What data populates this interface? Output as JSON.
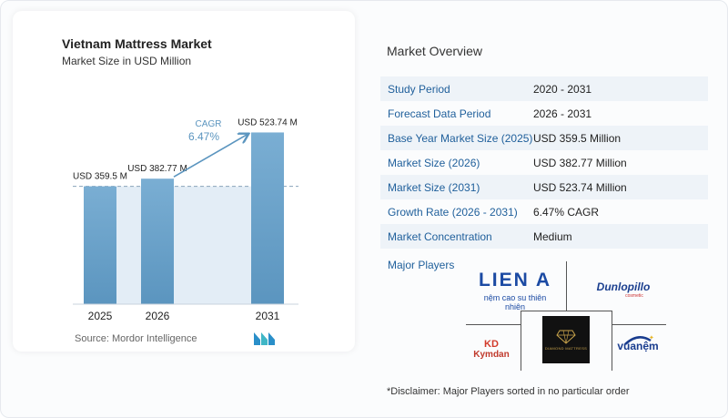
{
  "chart_data": {
    "type": "bar",
    "title": "Vietnam Mattress Market",
    "subtitle": "Market Size in USD Million",
    "categories": [
      "2025",
      "2026",
      "2031"
    ],
    "values": [
      359.5,
      382.77,
      523.74
    ],
    "data_labels": [
      "USD 359.5 M",
      "USD 382.77 M",
      "USD 523.74 M"
    ],
    "cagr_label": "CAGR",
    "cagr_value": "6.47%",
    "bar_color": "#5b95bf",
    "bar_color_top": "#7aaed3",
    "shade_color": "#e3edf6",
    "source": "Source:  Mordor Intelligence"
  },
  "overview": {
    "title": "Market Overview",
    "rows": [
      {
        "label": "Study Period",
        "value": "2020 - 2031"
      },
      {
        "label": "Forecast Data Period",
        "value": "2026 - 2031"
      },
      {
        "label": "Base Year Market Size (2025)",
        "value": "USD 359.5 Million"
      },
      {
        "label": "Market Size (2026)",
        "value": "USD 382.77 Million"
      },
      {
        "label": "Market Size (2031)",
        "value": "USD 523.74 Million"
      },
      {
        "label": "Growth Rate (2026 - 2031)",
        "value": "6.47% CAGR"
      },
      {
        "label": "Market Concentration",
        "value": "Medium"
      }
    ]
  },
  "players": {
    "title": "Major Players",
    "lien_a": {
      "name": "LIEN A",
      "tagline": "nệm cao su thiên nhiên"
    },
    "dunlopillo": {
      "name": "Dunlopillo",
      "tagline": "cosmetic"
    },
    "kymdan": {
      "mark": "KD",
      "name": "Kymdan"
    },
    "diamond": {
      "name": "DIAMOND MATTRESS"
    },
    "vuanem": {
      "name": "vuanệm"
    }
  },
  "disclaimer": "*Disclaimer: Major Players sorted in no particular order"
}
